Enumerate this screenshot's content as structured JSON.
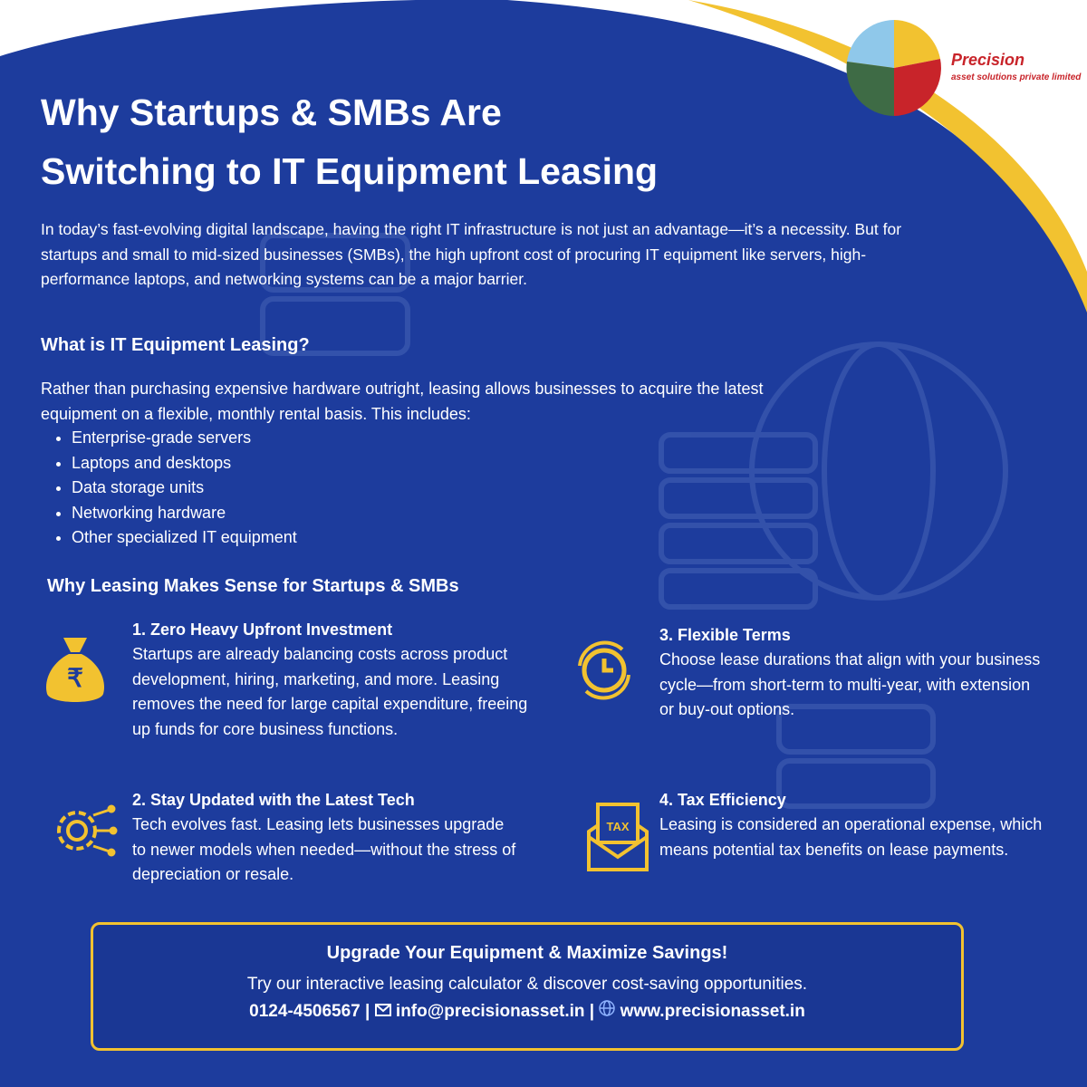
{
  "logo": {
    "name": "Precision",
    "tagline": "asset solutions private limited"
  },
  "title": [
    "Why Startups & SMBs Are",
    "Switching to IT Equipment Leasing"
  ],
  "intro": "In today’s fast-evolving digital landscape, having the right IT infrastructure is not just an advantage—it’s a necessity. But for startups and small to mid-sized businesses (SMBs), the high upfront cost of procuring IT equipment like servers, high-performance laptops, and networking systems can be a major barrier.",
  "what": {
    "heading": "What is IT Equipment Leasing?",
    "text": "Rather than purchasing expensive hardware outright, leasing allows businesses to acquire the latest equipment on a flexible, monthly rental basis. This includes:",
    "items": [
      "Enterprise-grade servers",
      "Laptops and desktops",
      "Data storage units",
      "Networking hardware",
      "Other specialized IT equipment"
    ]
  },
  "why": {
    "heading": "Why Leasing Makes Sense for Startups & SMBs",
    "benefits": [
      {
        "title": "1. Zero Heavy Upfront Investment",
        "text": "Startups are already balancing costs across product development, hiring, marketing, and more. Leasing removes the need for large capital expenditure, freeing up funds for core business functions."
      },
      {
        "title": "2. Stay Updated with the Latest Tech",
        "text": "Tech evolves fast. Leasing lets businesses upgrade to newer models when needed—without the stress of depreciation or resale."
      },
      {
        "title": "3. Flexible Terms",
        "text": "Choose lease durations that align with your business cycle—from short-term to multi-year, with extension or buy-out options."
      },
      {
        "title": "4. Tax Efficiency",
        "text": "Leasing is considered an operational expense, which means potential tax benefits on lease payments."
      }
    ]
  },
  "cta": {
    "heading": "Upgrade Your Equipment & Maximize Savings!",
    "text": "Try our interactive leasing calculator & discover cost-saving opportunities.",
    "phone": "0124-4506567",
    "separator": "|",
    "email": "info@precisionasset.in",
    "website": "www.precisionasset.in"
  },
  "icon_labels": {
    "rupee": "₹",
    "tax": "TAX"
  }
}
